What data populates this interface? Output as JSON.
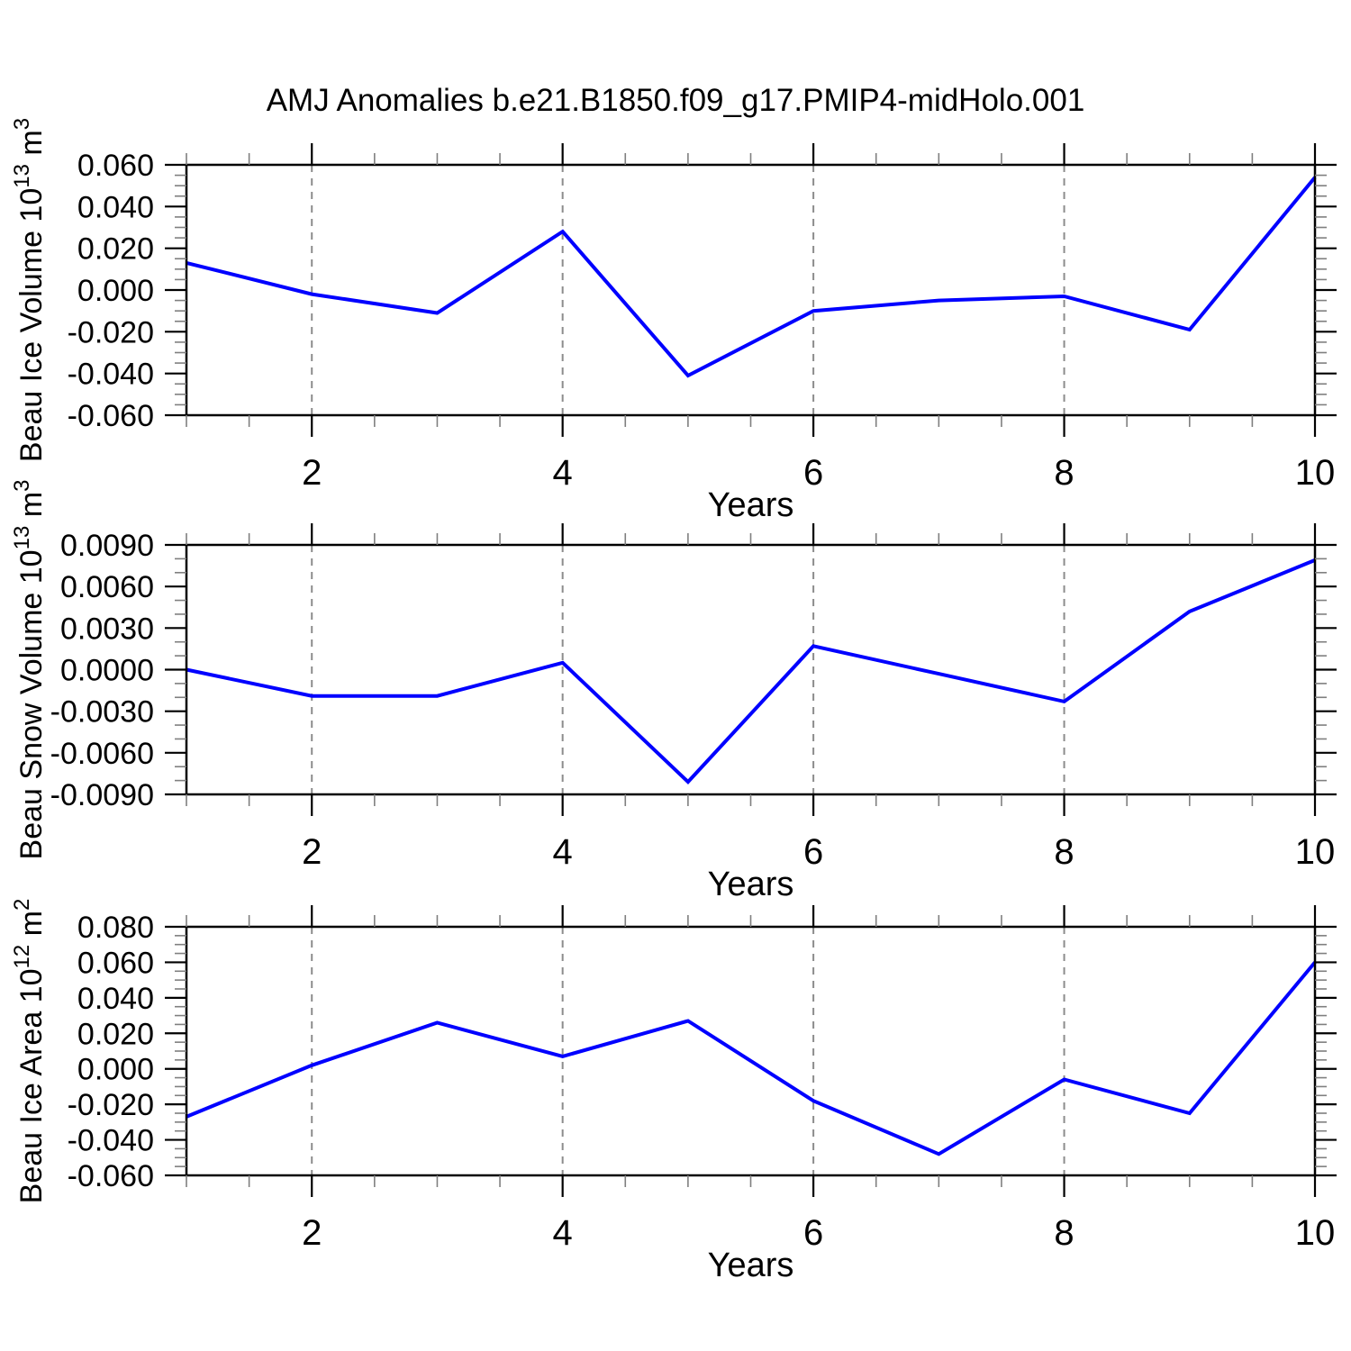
{
  "title": "AMJ Anomalies b.e21.B1850.f09_g17.PMIP4-midHolo.001",
  "colors": {
    "line": "#0000ff",
    "grid": "#8c8c8c",
    "axis": "#000000",
    "minor_tick": "#7f7f7f",
    "background": "#ffffff",
    "text": "#000000"
  },
  "chart_data": [
    {
      "type": "line",
      "ylabel": "Beau Ice Volume 10^13 m^3",
      "ylabel_rich": [
        {
          "text": "Beau Ice Volume 10"
        },
        {
          "text": "13",
          "sup": true
        },
        {
          "text": " m"
        },
        {
          "text": "3",
          "sup": true
        }
      ],
      "xlabel": "Years",
      "x": [
        1,
        2,
        3,
        4,
        5,
        6,
        7,
        8,
        9,
        10
      ],
      "values": [
        0.013,
        -0.002,
        -0.011,
        0.028,
        -0.041,
        -0.01,
        -0.005,
        -0.003,
        -0.019,
        0.054
      ],
      "xlim": [
        1,
        10
      ],
      "ylim": [
        -0.06,
        0.06
      ],
      "yticks": [
        {
          "v": 0.06,
          "label": "0.060"
        },
        {
          "v": 0.04,
          "label": "0.040"
        },
        {
          "v": 0.02,
          "label": "0.020"
        },
        {
          "v": 0.0,
          "label": "0.000"
        },
        {
          "v": -0.02,
          "label": "-0.020"
        },
        {
          "v": -0.04,
          "label": "-0.040"
        },
        {
          "v": -0.06,
          "label": "-0.060"
        }
      ],
      "yminor_step": 0.005,
      "xticks": [
        {
          "v": 2,
          "label": "2"
        },
        {
          "v": 4,
          "label": "4"
        },
        {
          "v": 6,
          "label": "6"
        },
        {
          "v": 8,
          "label": "8"
        },
        {
          "v": 10,
          "label": "10"
        }
      ],
      "xminor_step": 0.5,
      "grid_x": [
        2,
        4,
        6,
        8
      ],
      "grid_on": true,
      "legend": "none"
    },
    {
      "type": "line",
      "ylabel": "Beau Snow Volume 10^13 m^3",
      "ylabel_rich": [
        {
          "text": "Beau Snow Volume 10"
        },
        {
          "text": "13",
          "sup": true
        },
        {
          "text": " m"
        },
        {
          "text": "3",
          "sup": true
        }
      ],
      "xlabel": "Years",
      "x": [
        1,
        2,
        3,
        4,
        5,
        6,
        7,
        8,
        9,
        10
      ],
      "values": [
        0.0,
        -0.0019,
        -0.0019,
        0.0005,
        -0.0081,
        0.0017,
        -0.0003,
        -0.0023,
        0.0042,
        0.0079
      ],
      "xlim": [
        1,
        10
      ],
      "ylim": [
        -0.009,
        0.009
      ],
      "yticks": [
        {
          "v": 0.009,
          "label": "0.0090"
        },
        {
          "v": 0.006,
          "label": "0.0060"
        },
        {
          "v": 0.003,
          "label": "0.0030"
        },
        {
          "v": 0.0,
          "label": "0.0000"
        },
        {
          "v": -0.003,
          "label": "-0.0030"
        },
        {
          "v": -0.006,
          "label": "-0.0060"
        },
        {
          "v": -0.009,
          "label": "-0.0090"
        }
      ],
      "yminor_step": 0.001,
      "xticks": [
        {
          "v": 2,
          "label": "2"
        },
        {
          "v": 4,
          "label": "4"
        },
        {
          "v": 6,
          "label": "6"
        },
        {
          "v": 8,
          "label": "8"
        },
        {
          "v": 10,
          "label": "10"
        }
      ],
      "xminor_step": 0.5,
      "grid_x": [
        2,
        4,
        6,
        8
      ],
      "grid_on": true,
      "legend": "none"
    },
    {
      "type": "line",
      "ylabel": "Beau Ice Area 10^12 m^2",
      "ylabel_rich": [
        {
          "text": "Beau Ice Area 10"
        },
        {
          "text": "12",
          "sup": true
        },
        {
          "text": " m"
        },
        {
          "text": "2",
          "sup": true
        }
      ],
      "xlabel": "Years",
      "x": [
        1,
        2,
        3,
        4,
        5,
        6,
        7,
        8,
        9,
        10
      ],
      "values": [
        -0.027,
        0.002,
        0.026,
        0.007,
        0.027,
        -0.018,
        -0.048,
        -0.006,
        -0.025,
        0.06
      ],
      "xlim": [
        1,
        10
      ],
      "ylim": [
        -0.06,
        0.08
      ],
      "yticks": [
        {
          "v": 0.08,
          "label": "0.080"
        },
        {
          "v": 0.06,
          "label": "0.060"
        },
        {
          "v": 0.04,
          "label": "0.040"
        },
        {
          "v": 0.02,
          "label": "0.020"
        },
        {
          "v": 0.0,
          "label": "0.000"
        },
        {
          "v": -0.02,
          "label": "-0.020"
        },
        {
          "v": -0.04,
          "label": "-0.040"
        },
        {
          "v": -0.06,
          "label": "-0.060"
        }
      ],
      "yminor_step": 0.005,
      "xticks": [
        {
          "v": 2,
          "label": "2"
        },
        {
          "v": 4,
          "label": "4"
        },
        {
          "v": 6,
          "label": "6"
        },
        {
          "v": 8,
          "label": "8"
        },
        {
          "v": 10,
          "label": "10"
        }
      ],
      "xminor_step": 0.5,
      "grid_x": [
        2,
        4,
        6,
        8
      ],
      "grid_on": true,
      "legend": "none"
    }
  ]
}
